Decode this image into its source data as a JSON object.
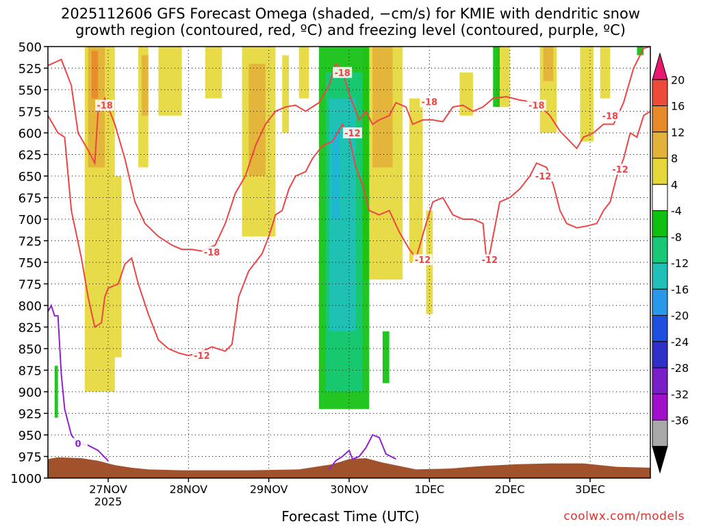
{
  "title": {
    "line1": "2025112606 GFS Forecast Omega (shaded, −cm/s) for KMIE with dendritic snow",
    "line2": "growth region (contoured, red, ºC) and freezing level (contoured, purple, ºC)"
  },
  "credit": "coolwx.com/models",
  "chart_data": {
    "type": "heatmap",
    "xlabel": "Forecast Time (UTC)",
    "ylabel": "",
    "x_ticks": [
      {
        "label": "27NOV",
        "sub": "2025",
        "hours": 18
      },
      {
        "label": "28NOV",
        "sub": "",
        "hours": 42
      },
      {
        "label": "29NOV",
        "sub": "",
        "hours": 66
      },
      {
        "label": "30NOV",
        "sub": "",
        "hours": 90
      },
      {
        "label": "1DEC",
        "sub": "",
        "hours": 114
      },
      {
        "label": "2DEC",
        "sub": "",
        "hours": 138
      },
      {
        "label": "3DEC",
        "sub": "",
        "hours": 162
      }
    ],
    "xlim_hours": [
      0,
      180
    ],
    "y_ticks": [
      500,
      525,
      550,
      575,
      600,
      625,
      650,
      675,
      700,
      725,
      750,
      775,
      800,
      825,
      850,
      875,
      900,
      925,
      950,
      975,
      1000
    ],
    "ylim": [
      1000,
      500
    ],
    "colorbar": {
      "labels": [
        "20",
        "16",
        "12",
        "8",
        "4",
        "-4",
        "-8",
        "-12",
        "-16",
        "-20",
        "-24",
        "-28",
        "-32",
        "-36"
      ],
      "colors": [
        "#e8196e",
        "#ee4a3a",
        "#e88a2a",
        "#e2b23a",
        "#e6d83a",
        "#ffffff",
        "#10c010",
        "#18c878",
        "#20c0b8",
        "#2898e8",
        "#1e50e0",
        "#3030c8",
        "#7a1fc8",
        "#a010c8",
        "#a8a8a8",
        "#000000"
      ]
    },
    "shading": [
      {
        "level": 4,
        "color": "#e6d83a",
        "blocks": [
          [
            11,
            20,
            500,
            900
          ],
          [
            20,
            22,
            650,
            860
          ],
          [
            27,
            30,
            500,
            640
          ],
          [
            33,
            40,
            500,
            580
          ],
          [
            47,
            52,
            500,
            560
          ],
          [
            58,
            68,
            500,
            720
          ],
          [
            70,
            72,
            510,
            600
          ],
          [
            75,
            78,
            500,
            560
          ],
          [
            94,
            106,
            500,
            770
          ],
          [
            108,
            112,
            560,
            750
          ],
          [
            113,
            115,
            690,
            810
          ],
          [
            123,
            127,
            530,
            580
          ],
          [
            134,
            138,
            500,
            570
          ],
          [
            147,
            152,
            500,
            600
          ],
          [
            159,
            163,
            500,
            610
          ],
          [
            165,
            168,
            500,
            560
          ]
        ]
      },
      {
        "level": 8,
        "color": "#e2b23a",
        "blocks": [
          [
            12,
            17,
            500,
            640
          ],
          [
            28,
            30,
            510,
            580
          ],
          [
            60,
            65,
            520,
            650
          ],
          [
            97,
            103,
            500,
            640
          ],
          [
            148,
            151,
            500,
            540
          ]
        ]
      },
      {
        "level": 12,
        "color": "#e88a2a",
        "blocks": [
          [
            13,
            15,
            505,
            560
          ]
        ]
      },
      {
        "level": -4,
        "color": "#10c010",
        "blocks": [
          [
            81,
            96,
            500,
            920
          ],
          [
            100,
            102,
            830,
            890
          ],
          [
            133,
            135,
            500,
            570
          ],
          [
            176,
            178,
            500,
            510
          ],
          [
            2,
            3,
            870,
            930
          ]
        ]
      },
      {
        "level": -8,
        "color": "#18c878",
        "blocks": [
          [
            83,
            94,
            530,
            900
          ]
        ]
      },
      {
        "level": -12,
        "color": "#20c0b8",
        "blocks": [
          [
            84,
            92,
            560,
            830
          ]
        ]
      },
      {
        "level": -16,
        "color": "#20b4d8",
        "blocks": [
          [
            85,
            87,
            600,
            700
          ]
        ]
      }
    ],
    "contours": [
      {
        "name": "-18",
        "color": "#ee4444",
        "labels": [
          [
            17,
            568,
            "-18"
          ],
          [
            49,
            738,
            "-18"
          ],
          [
            88,
            530,
            "-18"
          ],
          [
            114,
            564,
            "-18"
          ],
          [
            146,
            568,
            "-18"
          ],
          [
            168,
            580,
            "-18"
          ]
        ],
        "points": [
          [
            0,
            522
          ],
          [
            4,
            515
          ],
          [
            7,
            545
          ],
          [
            9,
            600
          ],
          [
            12,
            620
          ],
          [
            14,
            635
          ],
          [
            15,
            575
          ],
          [
            17,
            560
          ],
          [
            20,
            590
          ],
          [
            23,
            630
          ],
          [
            26,
            680
          ],
          [
            29,
            705
          ],
          [
            33,
            720
          ],
          [
            37,
            730
          ],
          [
            40,
            735
          ],
          [
            43,
            735
          ],
          [
            46,
            737
          ],
          [
            50,
            730
          ],
          [
            53,
            705
          ],
          [
            56,
            670
          ],
          [
            59,
            650
          ],
          [
            62,
            615
          ],
          [
            65,
            590
          ],
          [
            68,
            575
          ],
          [
            71,
            570
          ],
          [
            74,
            568
          ],
          [
            77,
            575
          ],
          [
            81,
            565
          ],
          [
            84,
            545
          ],
          [
            86,
            520
          ],
          [
            88,
            528
          ],
          [
            90,
            555
          ],
          [
            93,
            585
          ],
          [
            95,
            575
          ],
          [
            97,
            590
          ],
          [
            99,
            585
          ],
          [
            102,
            580
          ],
          [
            104,
            565
          ],
          [
            107,
            570
          ],
          [
            109,
            590
          ],
          [
            112,
            585
          ],
          [
            115,
            585
          ],
          [
            118,
            587
          ],
          [
            121,
            570
          ],
          [
            124,
            568
          ],
          [
            127,
            575
          ],
          [
            130,
            570
          ],
          [
            133,
            560
          ],
          [
            137,
            558
          ],
          [
            141,
            562
          ],
          [
            146,
            565
          ],
          [
            150,
            580
          ],
          [
            153,
            598
          ],
          [
            156,
            610
          ],
          [
            158,
            618
          ],
          [
            160,
            605
          ],
          [
            163,
            600
          ],
          [
            166,
            590
          ],
          [
            169,
            590
          ],
          [
            172,
            565
          ],
          [
            175,
            525
          ],
          [
            178,
            502
          ],
          [
            180,
            500
          ]
        ]
      },
      {
        "name": "-12",
        "color": "#ee4444",
        "labels": [
          [
            46,
            858,
            "-12"
          ],
          [
            91,
            600,
            "-12"
          ],
          [
            112,
            747,
            "-12"
          ],
          [
            132,
            747,
            "-12"
          ],
          [
            148,
            650,
            "-12"
          ],
          [
            171,
            642,
            "-12"
          ]
        ],
        "points": [
          [
            0,
            580
          ],
          [
            3,
            600
          ],
          [
            5,
            605
          ],
          [
            7,
            690
          ],
          [
            10,
            745
          ],
          [
            12,
            790
          ],
          [
            14,
            825
          ],
          [
            16,
            820
          ],
          [
            17,
            790
          ],
          [
            18,
            780
          ],
          [
            21,
            775
          ],
          [
            23,
            752
          ],
          [
            25,
            745
          ],
          [
            27,
            775
          ],
          [
            30,
            810
          ],
          [
            33,
            840
          ],
          [
            36,
            850
          ],
          [
            39,
            855
          ],
          [
            42,
            858
          ],
          [
            45,
            855
          ],
          [
            49,
            848
          ],
          [
            53,
            853
          ],
          [
            55,
            845
          ],
          [
            57,
            790
          ],
          [
            60,
            760
          ],
          [
            64,
            740
          ],
          [
            66,
            720
          ],
          [
            68,
            695
          ],
          [
            70,
            690
          ],
          [
            72,
            665
          ],
          [
            74,
            650
          ],
          [
            77,
            645
          ],
          [
            79,
            630
          ],
          [
            82,
            615
          ],
          [
            85,
            610
          ],
          [
            88,
            590
          ],
          [
            90,
            605
          ],
          [
            92,
            640
          ],
          [
            94,
            660
          ],
          [
            96,
            690
          ],
          [
            99,
            695
          ],
          [
            102,
            690
          ],
          [
            105,
            715
          ],
          [
            108,
            735
          ],
          [
            110,
            745
          ],
          [
            111,
            732
          ],
          [
            113,
            705
          ],
          [
            115,
            680
          ],
          [
            118,
            675
          ],
          [
            121,
            695
          ],
          [
            124,
            700
          ],
          [
            127,
            700
          ],
          [
            130,
            705
          ],
          [
            131,
            745
          ],
          [
            132,
            740
          ],
          [
            135,
            680
          ],
          [
            138,
            675
          ],
          [
            141,
            665
          ],
          [
            144,
            650
          ],
          [
            146,
            635
          ],
          [
            149,
            640
          ],
          [
            151,
            660
          ],
          [
            153,
            690
          ],
          [
            155,
            705
          ],
          [
            158,
            710
          ],
          [
            161,
            708
          ],
          [
            164,
            705
          ],
          [
            166,
            690
          ],
          [
            168,
            680
          ],
          [
            170,
            650
          ],
          [
            172,
            630
          ],
          [
            174,
            600
          ],
          [
            176,
            605
          ],
          [
            178,
            580
          ],
          [
            180,
            575
          ]
        ]
      },
      {
        "name": "0",
        "color": "#9020d0",
        "labels": [
          [
            9,
            960,
            "0"
          ]
        ],
        "points": [
          [
            0,
            807
          ],
          [
            1,
            800
          ],
          [
            2,
            812
          ],
          [
            3,
            812
          ],
          [
            4,
            880
          ],
          [
            5,
            920
          ],
          [
            7,
            950
          ],
          [
            9,
            960
          ],
          [
            12,
            962
          ],
          [
            15,
            968
          ],
          [
            18,
            980
          ]
        ]
      },
      {
        "name": "0b",
        "color": "#9020d0",
        "labels": [],
        "points": [
          [
            84,
            990
          ],
          [
            86,
            980
          ],
          [
            88,
            975
          ],
          [
            90,
            968
          ],
          [
            91,
            978
          ],
          [
            93,
            975
          ],
          [
            95,
            965
          ],
          [
            97,
            950
          ],
          [
            99,
            953
          ],
          [
            101,
            972
          ],
          [
            104,
            978
          ]
        ]
      }
    ],
    "terrain": {
      "color": "#a0522d",
      "points": [
        [
          0,
          978
        ],
        [
          3,
          976
        ],
        [
          10,
          977
        ],
        [
          15,
          980
        ],
        [
          20,
          985
        ],
        [
          25,
          988
        ],
        [
          30,
          990
        ],
        [
          40,
          991
        ],
        [
          60,
          991
        ],
        [
          75,
          990
        ],
        [
          80,
          987
        ],
        [
          85,
          984
        ],
        [
          90,
          978
        ],
        [
          95,
          977
        ],
        [
          100,
          982
        ],
        [
          105,
          986
        ],
        [
          110,
          990
        ],
        [
          120,
          989
        ],
        [
          130,
          986
        ],
        [
          140,
          984
        ],
        [
          150,
          983
        ],
        [
          160,
          983
        ],
        [
          170,
          987
        ],
        [
          180,
          988
        ]
      ]
    }
  }
}
